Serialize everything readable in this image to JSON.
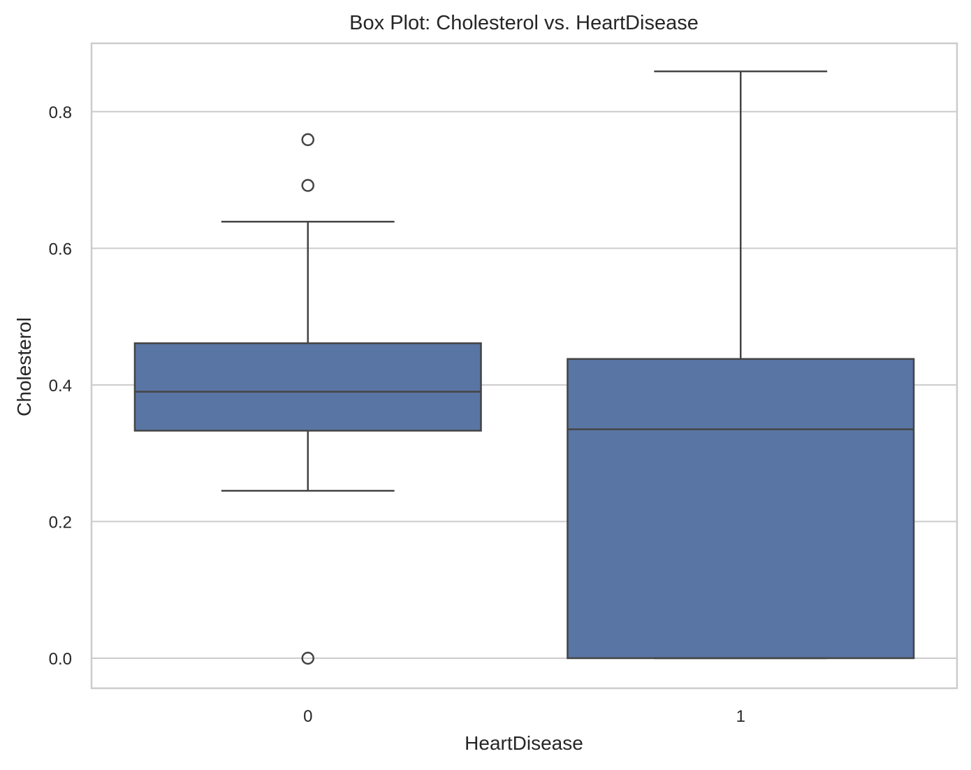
{
  "chart_data": {
    "type": "box",
    "title": "Box Plot: Cholesterol vs. HeartDisease",
    "xlabel": "HeartDisease",
    "ylabel": "Cholesterol",
    "categories": [
      "0",
      "1"
    ],
    "ylim": [
      -0.044,
      0.9
    ],
    "yticks": [
      {
        "value": 0.0,
        "label": "0.0"
      },
      {
        "value": 0.2,
        "label": "0.2"
      },
      {
        "value": 0.4,
        "label": "0.4"
      },
      {
        "value": 0.6,
        "label": "0.6"
      },
      {
        "value": 0.8,
        "label": "0.8"
      }
    ],
    "grid": true,
    "boxes": [
      {
        "category": "0",
        "whisker_low": 0.245,
        "q1": 0.333,
        "median": 0.39,
        "q3": 0.461,
        "whisker_high": 0.639,
        "outliers": [
          0.759,
          0.692,
          0.0
        ]
      },
      {
        "category": "1",
        "whisker_low": 0.0,
        "q1": 0.0,
        "median": 0.335,
        "q3": 0.438,
        "whisker_high": 0.859,
        "outliers": []
      }
    ],
    "colors": {
      "box_fill": "#5975a4",
      "line": "#444444",
      "grid": "#cccccc",
      "spine": "#cccccc"
    }
  }
}
